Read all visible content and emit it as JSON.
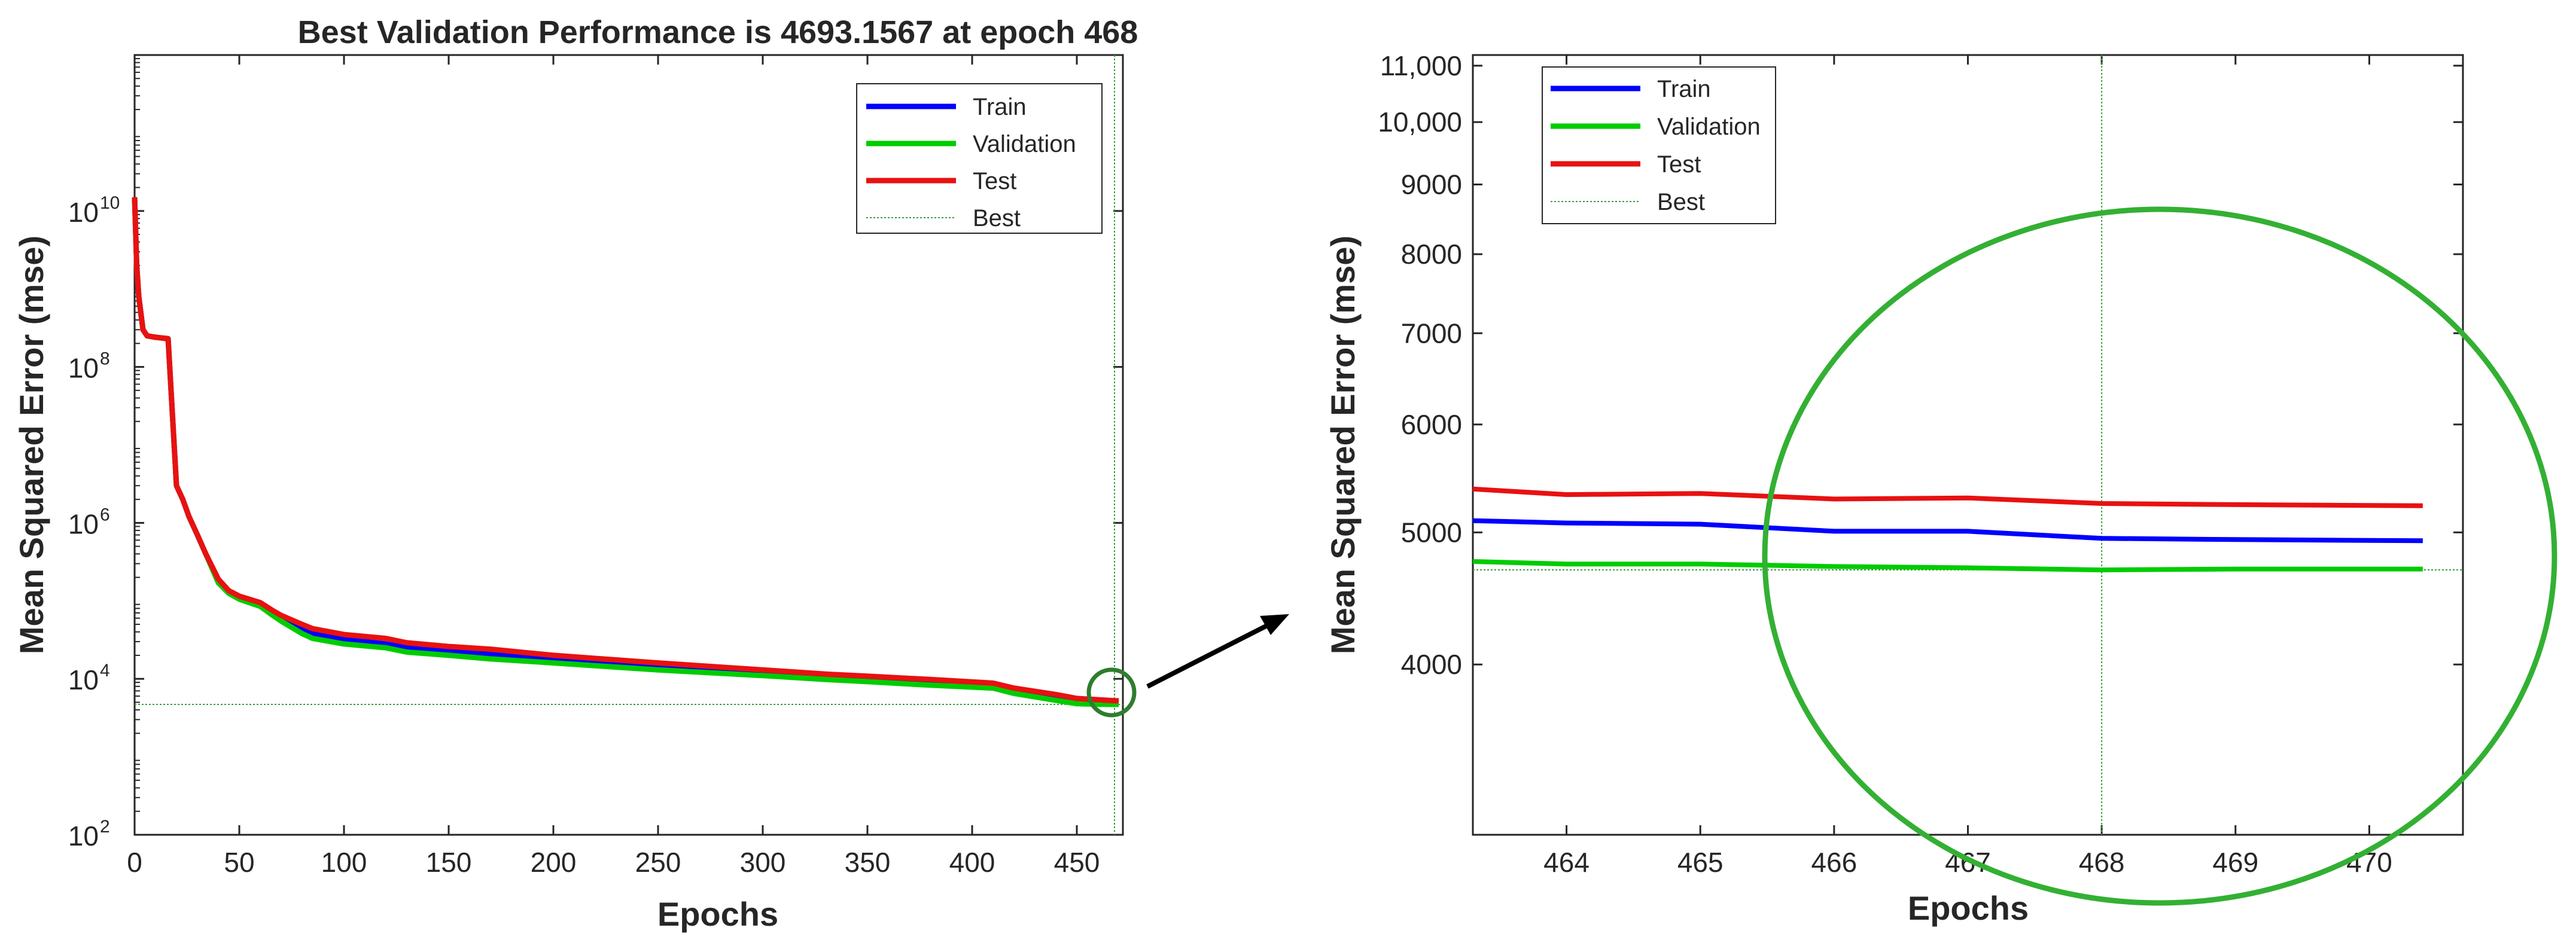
{
  "chart_data": [
    {
      "type": "line",
      "title": "Best Validation Performance is 4693.1567 at epoch 468",
      "xlabel": "Epochs",
      "ylabel": "Mean Squared Error  (mse)",
      "xlim": [
        0,
        472
      ],
      "ylim": [
        100,
        1000000000000
      ],
      "yscale": "log",
      "x_ticks": [
        0,
        50,
        100,
        150,
        200,
        250,
        300,
        350,
        400,
        450
      ],
      "x_tick_labels": [
        "0",
        "50",
        "100",
        "150",
        "200",
        "250",
        "300",
        "350",
        "400",
        "450"
      ],
      "y_ticks": [
        {
          "value": 100,
          "base": "10",
          "exp": "2"
        },
        {
          "value": 10000,
          "base": "10",
          "exp": "4"
        },
        {
          "value": 1000000,
          "base": "10",
          "exp": "6"
        },
        {
          "value": 100000000,
          "base": "10",
          "exp": "8"
        },
        {
          "value": 10000000000,
          "base": "10",
          "exp": "10"
        }
      ],
      "legend": {
        "position": "top-right",
        "entries": [
          {
            "label": "Train",
            "color": "#0000ff"
          },
          {
            "label": "Validation",
            "color": "#00cc00"
          },
          {
            "label": "Test",
            "color": "#e81111"
          },
          {
            "label": "Best",
            "color": "#3c9c3c",
            "dotted": true
          }
        ]
      },
      "best": {
        "epoch": 468,
        "value": 4693.1567
      },
      "series": [
        {
          "name": "Train",
          "color": "#0000ff",
          "x": [
            0,
            1,
            2,
            4,
            6,
            10,
            16,
            20,
            23,
            26,
            30,
            34,
            40,
            45,
            50,
            60,
            66,
            70,
            80,
            85,
            100,
            120,
            130,
            150,
            170,
            200,
            250,
            300,
            330,
            350,
            380,
            410,
            420,
            440,
            450,
            460,
            468,
            470
          ],
          "y": [
            15000000000,
            2000000000,
            800000000,
            300000000,
            250000000,
            240000000,
            230000000,
            3000000,
            2000000,
            1200000,
            700000,
            400000,
            180000,
            130000,
            110000,
            90000,
            70000,
            60000,
            45000,
            38000,
            32000,
            28000,
            25000,
            23000,
            21000,
            18000,
            14500,
            12000,
            10500,
            10000,
            9000,
            8200,
            7000,
            5800,
            5200,
            5000,
            4950,
            4930
          ]
        },
        {
          "name": "Validation",
          "color": "#00cc00",
          "x": [
            0,
            1,
            2,
            4,
            6,
            10,
            16,
            20,
            23,
            26,
            30,
            34,
            40,
            45,
            50,
            60,
            66,
            70,
            80,
            85,
            100,
            120,
            130,
            150,
            170,
            200,
            250,
            300,
            330,
            350,
            380,
            410,
            420,
            440,
            450,
            460,
            468,
            470
          ],
          "y": [
            15000000000,
            2000000000,
            800000000,
            300000000,
            250000000,
            240000000,
            230000000,
            3000000,
            2000000,
            1200000,
            700000,
            400000,
            170000,
            125000,
            105000,
            85000,
            65000,
            55000,
            38000,
            33000,
            28000,
            25000,
            22000,
            20000,
            18000,
            16000,
            13000,
            11000,
            9800,
            9200,
            8300,
            7600,
            6500,
            5300,
            4800,
            4720,
            4693,
            4700
          ]
        },
        {
          "name": "Test",
          "color": "#e81111",
          "x": [
            0,
            1,
            2,
            4,
            6,
            10,
            16,
            20,
            23,
            26,
            30,
            34,
            40,
            45,
            50,
            60,
            66,
            70,
            80,
            85,
            100,
            120,
            130,
            150,
            170,
            200,
            250,
            300,
            330,
            350,
            380,
            410,
            420,
            440,
            450,
            460,
            468,
            470
          ],
          "y": [
            15000000000,
            2000000000,
            800000000,
            300000000,
            250000000,
            240000000,
            230000000,
            3000000,
            2000000,
            1200000,
            700000,
            400000,
            190000,
            135000,
            115000,
            95000,
            75000,
            65000,
            50000,
            44000,
            37000,
            33000,
            29000,
            26000,
            24000,
            20000,
            16000,
            13000,
            11500,
            10800,
            9800,
            8800,
            7600,
            6300,
            5600,
            5400,
            5250,
            5230
          ]
        }
      ]
    },
    {
      "type": "line",
      "title": "",
      "xlabel": "Epochs",
      "ylabel": "Mean Squared Error  (mse)",
      "xlim": [
        463.3,
        470.7
      ],
      "ylim": [
        3000,
        11200
      ],
      "yscale": "log",
      "x_ticks": [
        464,
        465,
        466,
        467,
        468,
        469,
        470
      ],
      "x_tick_labels": [
        "464",
        "465",
        "466",
        "467",
        "468",
        "469",
        "470"
      ],
      "y_ticks": [
        4000,
        5000,
        6000,
        7000,
        8000,
        9000,
        10000,
        11000
      ],
      "y_tick_labels": [
        "4000",
        "5000",
        "6000",
        "7000",
        "8000",
        "9000",
        "10,000",
        "11,000"
      ],
      "legend": {
        "position": "top-left",
        "entries": [
          {
            "label": "Train",
            "color": "#0000ff"
          },
          {
            "label": "Validation",
            "color": "#00cc00"
          },
          {
            "label": "Test",
            "color": "#e81111"
          },
          {
            "label": "Best",
            "color": "#3c9c3c",
            "dotted": true
          }
        ]
      },
      "best": {
        "epoch": 468,
        "value": 4693.1567
      },
      "series": [
        {
          "name": "Train",
          "color": "#0000ff",
          "x": [
            463.3,
            464,
            465,
            466,
            467,
            468,
            469,
            470.4
          ],
          "y": [
            5100,
            5080,
            5070,
            5010,
            5010,
            4950,
            4940,
            4930
          ]
        },
        {
          "name": "Validation",
          "color": "#00cc00",
          "x": [
            463.3,
            464,
            465,
            466,
            467,
            468,
            469,
            470.4
          ],
          "y": [
            4760,
            4740,
            4740,
            4720,
            4710,
            4693,
            4700,
            4700
          ]
        },
        {
          "name": "Test",
          "color": "#e81111",
          "x": [
            463.3,
            464,
            465,
            466,
            467,
            468,
            469,
            470.4
          ],
          "y": [
            5380,
            5330,
            5340,
            5290,
            5300,
            5250,
            5240,
            5230
          ]
        }
      ]
    }
  ]
}
